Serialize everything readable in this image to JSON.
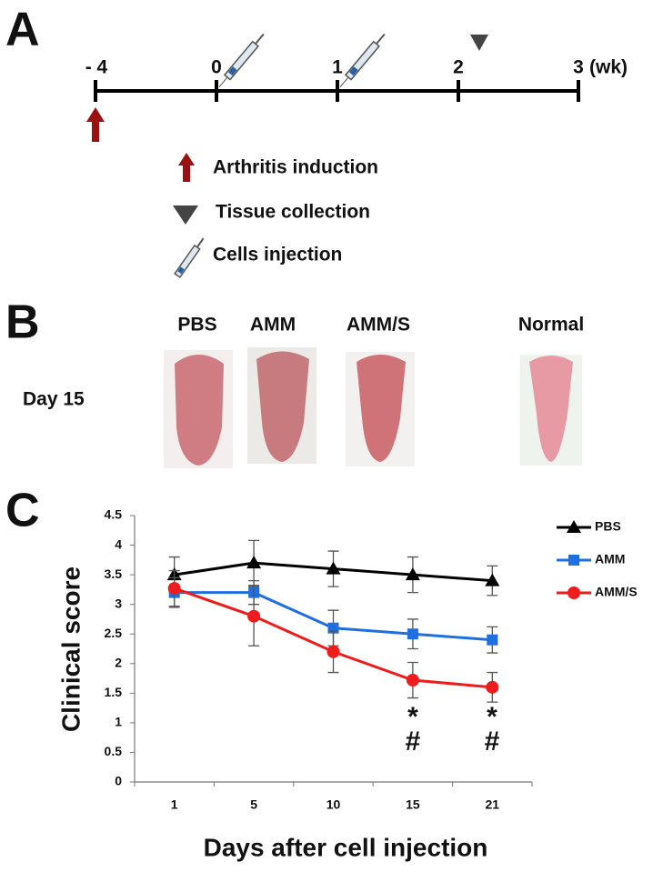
{
  "panel_a": {
    "label": "A",
    "timeline": [
      "- 4",
      "0",
      "1",
      "2",
      "3"
    ],
    "unit": "(wk)",
    "legend": [
      "Arthritis induction",
      "Tissue collection",
      "Cells injection"
    ]
  },
  "panel_b": {
    "label": "B",
    "day": "Day 15",
    "groups": [
      "PBS",
      "AMM",
      "AMM/S",
      "Normal"
    ]
  },
  "panel_c_label": "C",
  "chart_data": {
    "type": "line",
    "x_label": "Days after cell injection",
    "y_label": "Clinical score",
    "categories": [
      "1",
      "5",
      "10",
      "15",
      "21"
    ],
    "series": [
      {
        "name": "PBS",
        "color": "#000000",
        "marker": "triangle",
        "values": [
          3.5,
          3.7,
          3.6,
          3.5,
          3.4
        ],
        "errors": [
          0.3,
          0.38,
          0.3,
          0.3,
          0.25
        ]
      },
      {
        "name": "AMM",
        "color": "#1f6fe0",
        "marker": "square",
        "values": [
          3.2,
          3.2,
          2.6,
          2.5,
          2.4
        ],
        "errors": [
          0.25,
          0.2,
          0.3,
          0.25,
          0.22
        ]
      },
      {
        "name": "AMM/S",
        "color": "#ee1c1c",
        "marker": "circle",
        "values": [
          3.27,
          2.8,
          2.2,
          1.72,
          1.6
        ],
        "errors": [
          0.3,
          0.5,
          0.35,
          0.3,
          0.25
        ]
      }
    ],
    "annotations": [
      "*",
      "#",
      "*",
      "#"
    ],
    "ylim": [
      0,
      4.5
    ],
    "yticks": [
      0,
      0.5,
      1,
      1.5,
      2,
      2.5,
      3,
      3.5,
      4,
      4.5
    ]
  }
}
